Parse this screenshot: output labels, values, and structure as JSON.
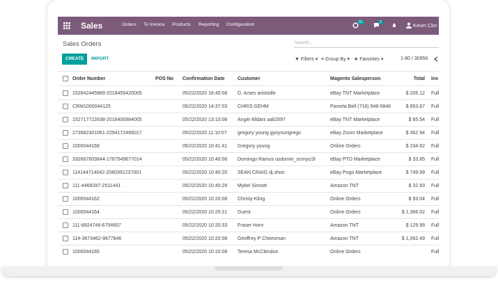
{
  "navbar": {
    "app": "Sales",
    "menus": [
      "Orders",
      "To Invoice",
      "Products",
      "Reporting",
      "Configuration"
    ],
    "activity_badge": "31",
    "message_badge": "2",
    "user": "Kevin Clor (t"
  },
  "control_panel": {
    "title": "Sales Orders",
    "search_placeholder": "Search...",
    "create": "CREATE",
    "import": "IMPORT",
    "filters": "Filters",
    "group_by": "Group By",
    "favorites": "Favorites",
    "pager": "1-80 / 30956"
  },
  "table": {
    "headers": [
      "Order Number",
      "POS No",
      "Confirmation Date",
      "Customer",
      "Magento Salesperson",
      "Total",
      "Inv"
    ],
    "rows": [
      {
        "order": "152842445989-2018455420005",
        "date": "05/22/2020 16:40:08",
        "customer": "D. Ames aristodle",
        "salesperson": "eBay TNT Marketplace",
        "total": "$ 205.12",
        "invoice": "Full"
      },
      {
        "order": "CRM1000044125",
        "date": "05/22/2020 14:37:03",
        "customer": "CHRIS GEHM",
        "salesperson": "Pamela Bell (716) 948-5846",
        "total": "$ 853.67",
        "invoice": "Full"
      },
      {
        "order": "152717722638-2018400984005",
        "date": "05/22/2020 13:10:08",
        "customer": "Angie Alldani aali2697",
        "salesperson": "eBay TNT Marketplace",
        "total": "$ 65.54",
        "invoice": "Full"
      },
      {
        "order": "273982301061-2294172466017",
        "date": "05/22/2020 11:10:07",
        "customer": "gregory young gyoyoungrego",
        "salesperson": "eBay Zoom Marketplace",
        "total": "$ 362.94",
        "invoice": "Full"
      },
      {
        "order": "1000044168",
        "date": "05/22/2020 10:41:41",
        "customer": "Gregory young",
        "salesperson": "Online Orders",
        "total": "$ 234.62",
        "invoice": "Full"
      },
      {
        "order": "332667603844-1767549677014",
        "date": "05/22/2020 10:40:08",
        "customer": "Domingo Ramos usdomin_ocmyiz3l",
        "salesperson": "eBay PTD Marketplace",
        "total": "$ 33.85",
        "invoice": "Full"
      },
      {
        "order": "114144714042-2080391237001",
        "date": "05/22/2020 10:40:20",
        "customer": "SEAN CRAIG dj.shon",
        "salesperson": "eBay Pogo Marketplace",
        "total": "$ 749.99",
        "invoice": "Full"
      },
      {
        "order": "111-4469287-2511441",
        "date": "05/22/2020 10:40:29",
        "customer": "Mykel Sinnott",
        "salesperson": "Amazon TNT",
        "total": "$ 32.93",
        "invoice": "Full"
      },
      {
        "order": "1000044162",
        "date": "05/22/2020 10:20:08",
        "customer": "Christy Kling",
        "salesperson": "Online Orders",
        "total": "$ 93.04",
        "invoice": "Full"
      },
      {
        "order": "1000044164",
        "date": "05/22/2020 10:20:21",
        "customer": "Guest",
        "salesperson": "Online Orders",
        "total": "$ 1,366.02",
        "invoice": "Full"
      },
      {
        "order": "111-8924746-6754657",
        "date": "05/22/2020 10:20:33",
        "customer": "Fraser Horn",
        "salesperson": "Amazon TNT",
        "total": "$ 129.99",
        "invoice": "Full"
      },
      {
        "order": "114-3673462-9677846",
        "date": "05/22/2020 10:20:08",
        "customer": "Geoffrey P Cheesman",
        "salesperson": "Amazon TNT",
        "total": "$ 1,062.49",
        "invoice": "Full"
      },
      {
        "order": "1000044165",
        "date": "05/22/2020 10:10:08",
        "customer": "Teresa McClendon",
        "salesperson": "Online Orders",
        "invoice": "Full"
      }
    ]
  }
}
